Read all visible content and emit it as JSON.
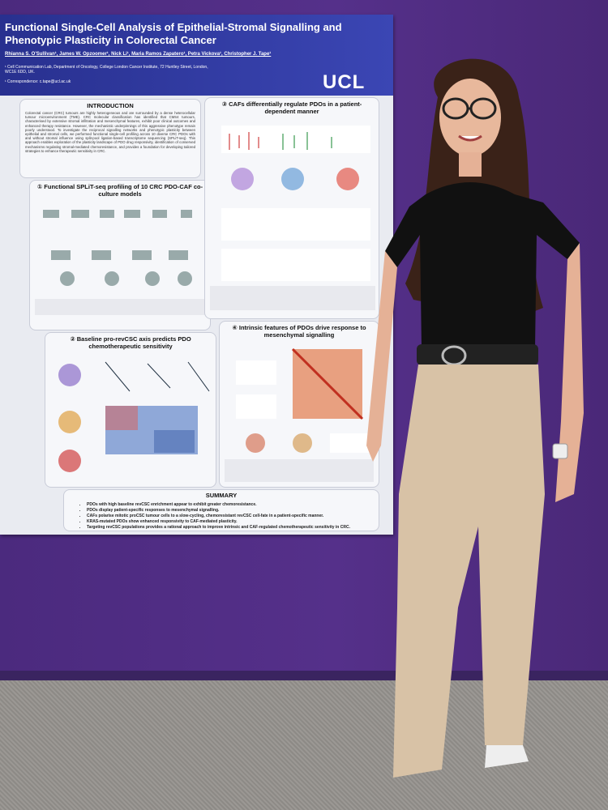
{
  "poster": {
    "title": "Functional Single-Cell Analysis of Epithelial-Stromal Signalling and Phenotypic Plasticity in Colorectal Cancer",
    "authors": "Rhianna S. O'Sullivan¹, James W. Opzoomer¹, Nick Li¹, Maria Ramos Zapatero¹, Petra Vickova¹, Christopher J. Tape¹",
    "affiliation": "¹ Cell Communication Lab, Department of Oncology, College London Cancer Institute, 72 Huntley Street, London, WC1E 6DD, UK.",
    "correspondence": "¹ Correspondence: c.tape@ucl.ac.uk",
    "logo": "UCL",
    "introduction": {
      "heading": "INTRODUCTION",
      "text": "Colorectal cancer (CRC) tumours are highly heterogeneous and are surrounded by a dense heterocellular tumour microenvironment (TME). CRC molecular classification has identified that CMS4 tumours, characterised by extensive stromal infiltration and mesenchymal features, exhibit poor clinical outcomes and enhanced therapy resistance. However, the mechanistic underpinnings of this aggressive phenotype remain poorly understood. To investigate the reciprocal signalling networks and phenotypic plasticity between epithelial and stromal cells, we performed functional single-cell profiling across 10 diverse CRC PDOs with and without stromal influence using split-pool ligation-based transcriptome sequencing (SPLiT-seq). This approach enables exploration of the plasticity landscape of PDO drug responsivity, identification of conserved mechanisms regulating stromal-mediated chemoresistance, and provides a foundation for developing tailored strategies to enhance therapeutic sensitivity in CRC."
    },
    "sections": [
      {
        "heading": "① Functional SPLiT-seq profiling of 10 CRC PDO-CAF co-culture models"
      },
      {
        "heading": "② Baseline pro-revCSC axis predicts PDO chemotherapeutic sensitivity"
      },
      {
        "heading": "③ CAFs differentially regulate PDOs in a patient-dependent manner"
      },
      {
        "heading": "④ Intrinsic features of PDOs drive response to mesenchymal signalling"
      }
    ],
    "summary": {
      "heading": "SUMMARY",
      "points": [
        "PDOs with high baseline revCSC enrichment appear to exhibit greater chemoresistance.",
        "PDOs display patient-specific responses to mesenchymal signalling.",
        "CAFs polarise mitotic proCSC tumour cells to a slow-cycling, chemoresistant revCSC cell-fate in a patient-specific manner.",
        "KRAS-mutated PDOs show enhanced responsivity to CAF-mediated plasticity.",
        "Targeting revCSC populations provides a rational approach to improve intrinsic and CAF-regulated chemotherapeutic sensitivity in CRC."
      ]
    }
  }
}
